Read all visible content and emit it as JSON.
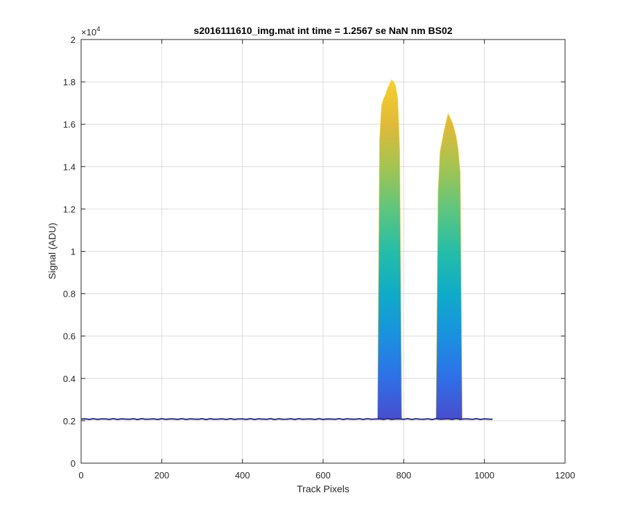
{
  "chart_data": {
    "type": "area",
    "title": "s2016111610_img.mat int time = 1.2567 se  NaN nm BS02",
    "xlabel": "Track Pixels",
    "ylabel": "Signal (ADU)",
    "exponent_label": "×10",
    "exponent_power": "4",
    "xlim": [
      0,
      1200
    ],
    "ylim": [
      0,
      20000
    ],
    "x_ticks": [
      0,
      200,
      400,
      600,
      800,
      1000,
      1200
    ],
    "x_tick_labels": [
      "0",
      "200",
      "400",
      "600",
      "800",
      "1000",
      "1200"
    ],
    "y_ticks": [
      0,
      2000,
      4000,
      6000,
      8000,
      10000,
      12000,
      14000,
      16000,
      18000,
      20000
    ],
    "y_tick_labels": [
      "0",
      "0.2",
      "0.4",
      "0.6",
      "0.8",
      "1",
      "1.2",
      "1.4",
      "1.6",
      "1.8",
      "2"
    ],
    "grid": true,
    "baseline": {
      "x_start": 0,
      "x_end": 1022,
      "value": 2080
    },
    "peaks": [
      {
        "x": [
          735,
          740,
          745,
          750,
          755,
          760,
          765,
          770,
          775,
          780,
          785,
          790,
          795
        ],
        "y": [
          2150,
          15200,
          16900,
          17200,
          17400,
          17700,
          17900,
          18100,
          18000,
          17800,
          17200,
          14800,
          2200
        ]
      },
      {
        "x": [
          880,
          885,
          890,
          895,
          900,
          905,
          910,
          915,
          920,
          925,
          930,
          935,
          940,
          945
        ],
        "y": [
          2200,
          12800,
          14700,
          15200,
          15700,
          16100,
          16500,
          16300,
          16100,
          15800,
          15400,
          14800,
          13700,
          2150
        ]
      }
    ],
    "colormap": [
      "#3e26a8",
      "#4a4ccb",
      "#2f6fe8",
      "#1a91e0",
      "#0fabc8",
      "#25bda8",
      "#5fc57e",
      "#a5c451",
      "#e0b939",
      "#f6cf2e",
      "#f9e41a"
    ]
  }
}
